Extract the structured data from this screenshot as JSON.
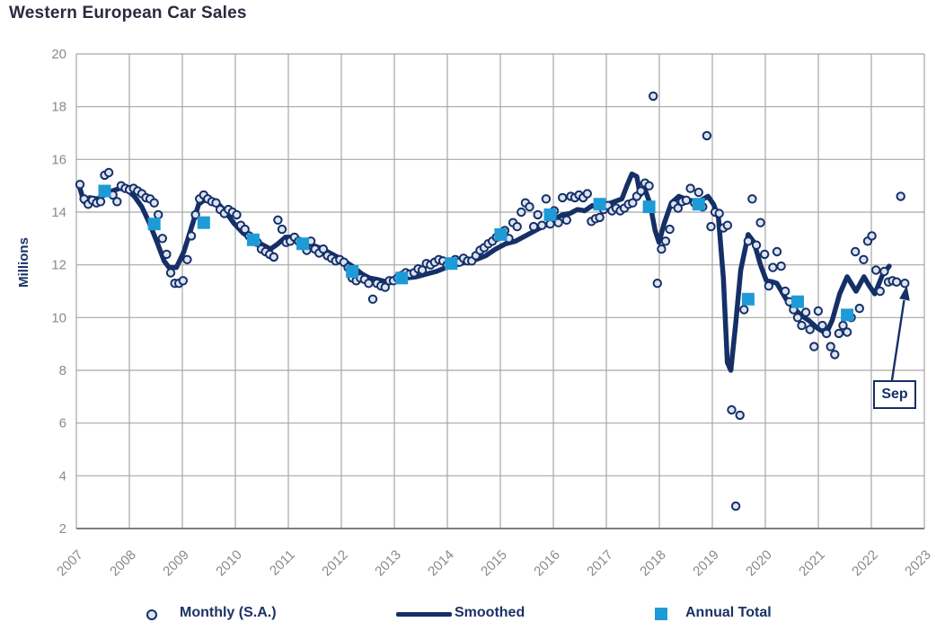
{
  "title": "Western European Car Sales",
  "y_axis_title": "Millions",
  "legend": {
    "monthly_label": "Monthly (S.A.)",
    "smoothed_label": "Smoothed",
    "annual_label": "Annual Total"
  },
  "annotation": {
    "label": "Sep"
  },
  "colors": {
    "navy": "#152F67",
    "dot_fill": "#DCE4F2",
    "annual_blue": "#1E9BD7",
    "grid": "#A6A6A6",
    "axis_line": "#7F7F7F",
    "axis_text": "#8A8A8A",
    "title_text": "#2A2A40",
    "label_text": "#1B3266"
  },
  "chart_data": {
    "type": "line",
    "title": "Western European Car Sales",
    "xlabel": "",
    "ylabel": "Millions",
    "ylim": [
      2,
      20
    ],
    "ytick_step": 2,
    "grid": true,
    "legend_position": "bottom",
    "x_years": [
      "2007",
      "2008",
      "2009",
      "2010",
      "2011",
      "2012",
      "2013",
      "2014",
      "2015",
      "2016",
      "2017",
      "2018",
      "2019",
      "2020",
      "2021",
      "2022",
      "2023"
    ],
    "monthly": {
      "name": "Monthly (S.A.)",
      "start": "2007-01",
      "end": "2023-09",
      "unit": "millions, seasonally adjusted annual rate",
      "values": [
        15.05,
        14.5,
        14.3,
        14.45,
        14.35,
        14.4,
        15.4,
        15.5,
        14.65,
        14.4,
        15.0,
        14.9,
        14.85,
        14.9,
        14.8,
        14.7,
        14.55,
        14.5,
        14.35,
        13.9,
        13.0,
        12.4,
        11.7,
        11.3,
        11.3,
        11.4,
        12.2,
        13.1,
        13.9,
        14.5,
        14.65,
        14.5,
        14.4,
        14.35,
        14.1,
        13.95,
        14.1,
        14.0,
        13.9,
        13.5,
        13.35,
        13.1,
        13.0,
        12.85,
        12.6,
        12.5,
        12.4,
        12.3,
        13.7,
        13.35,
        12.85,
        12.9,
        13.05,
        12.9,
        12.8,
        12.55,
        12.9,
        12.6,
        12.45,
        12.6,
        12.35,
        12.25,
        12.15,
        12.2,
        12.1,
        11.9,
        11.5,
        11.4,
        11.5,
        11.45,
        11.3,
        10.7,
        11.3,
        11.2,
        11.15,
        11.4,
        11.4,
        11.5,
        11.6,
        11.7,
        11.65,
        11.7,
        11.85,
        11.8,
        12.05,
        12.0,
        12.1,
        12.2,
        12.15,
        12.0,
        12.1,
        12.2,
        12.1,
        12.25,
        12.15,
        12.15,
        12.35,
        12.55,
        12.65,
        12.8,
        12.9,
        13.05,
        13.15,
        13.3,
        13.0,
        13.6,
        13.45,
        14.0,
        14.35,
        14.2,
        13.45,
        13.9,
        13.5,
        14.5,
        13.55,
        14.05,
        13.6,
        14.55,
        13.7,
        14.6,
        14.55,
        14.65,
        14.55,
        14.7,
        13.65,
        13.75,
        13.8,
        14.1,
        14.25,
        14.05,
        14.15,
        14.05,
        14.15,
        14.3,
        14.35,
        14.6,
        14.8,
        15.1,
        15.0,
        18.4,
        11.3,
        12.6,
        12.9,
        13.35,
        14.3,
        14.15,
        14.4,
        14.45,
        14.9,
        14.35,
        14.75,
        14.2,
        16.9,
        13.45,
        14.0,
        13.95,
        13.4,
        13.5,
        6.5,
        2.85,
        6.3,
        10.3,
        12.9,
        14.5,
        12.75,
        13.6,
        12.4,
        11.2,
        11.9,
        12.5,
        11.95,
        11.0,
        10.6,
        10.3,
        10.0,
        9.7,
        10.2,
        9.55,
        8.9,
        10.25,
        9.7,
        9.4,
        8.9,
        8.6,
        9.4,
        9.7,
        9.45,
        10.0,
        12.5,
        10.35,
        12.2,
        12.9,
        13.1,
        11.8,
        11.0,
        11.75,
        11.35,
        11.4,
        11.35,
        14.6,
        11.3
      ]
    },
    "smoothed": {
      "name": "Smoothed",
      "points": [
        [
          0,
          14.9
        ],
        [
          0.08,
          14.4
        ],
        [
          0.2,
          14.55
        ],
        [
          0.35,
          14.5
        ],
        [
          0.5,
          14.65
        ],
        [
          0.65,
          14.8
        ],
        [
          0.8,
          14.9
        ],
        [
          0.95,
          14.85
        ],
        [
          1.1,
          14.6
        ],
        [
          1.25,
          14.2
        ],
        [
          1.4,
          13.6
        ],
        [
          1.55,
          12.9
        ],
        [
          1.7,
          12.15
        ],
        [
          1.8,
          11.9
        ],
        [
          1.95,
          11.9
        ],
        [
          2.1,
          12.5
        ],
        [
          2.25,
          13.4
        ],
        [
          2.4,
          14.3
        ],
        [
          2.5,
          14.45
        ],
        [
          2.65,
          14.4
        ],
        [
          2.8,
          14.3
        ],
        [
          2.95,
          14.0
        ],
        [
          3.1,
          13.6
        ],
        [
          3.3,
          13.2
        ],
        [
          3.5,
          12.95
        ],
        [
          3.7,
          12.75
        ],
        [
          3.85,
          12.6
        ],
        [
          4.0,
          12.8
        ],
        [
          4.15,
          13.05
        ],
        [
          4.3,
          13.05
        ],
        [
          4.5,
          12.9
        ],
        [
          4.7,
          12.75
        ],
        [
          4.9,
          12.6
        ],
        [
          5.1,
          12.4
        ],
        [
          5.3,
          12.2
        ],
        [
          5.5,
          11.95
        ],
        [
          5.7,
          11.65
        ],
        [
          5.85,
          11.5
        ],
        [
          6.0,
          11.45
        ],
        [
          6.2,
          11.35
        ],
        [
          6.4,
          11.4
        ],
        [
          6.6,
          11.5
        ],
        [
          6.8,
          11.55
        ],
        [
          7.0,
          11.65
        ],
        [
          7.2,
          11.75
        ],
        [
          7.4,
          11.9
        ],
        [
          7.6,
          12.0
        ],
        [
          7.8,
          12.1
        ],
        [
          8.0,
          12.2
        ],
        [
          8.2,
          12.35
        ],
        [
          8.4,
          12.6
        ],
        [
          8.6,
          12.8
        ],
        [
          8.8,
          12.9
        ],
        [
          9.0,
          13.1
        ],
        [
          9.2,
          13.3
        ],
        [
          9.4,
          13.5
        ],
        [
          9.6,
          13.75
        ],
        [
          9.75,
          13.9
        ],
        [
          9.9,
          13.95
        ],
        [
          10.05,
          14.1
        ],
        [
          10.2,
          14.05
        ],
        [
          10.35,
          14.25
        ],
        [
          10.5,
          14.15
        ],
        [
          10.65,
          14.3
        ],
        [
          10.8,
          14.4
        ],
        [
          10.95,
          14.5
        ],
        [
          11.05,
          15.0
        ],
        [
          11.15,
          15.45
        ],
        [
          11.25,
          15.35
        ],
        [
          11.32,
          14.65
        ],
        [
          11.42,
          14.85
        ],
        [
          11.52,
          14.3
        ],
        [
          11.62,
          13.3
        ],
        [
          11.7,
          12.85
        ],
        [
          11.8,
          13.55
        ],
        [
          11.95,
          14.35
        ],
        [
          12.1,
          14.6
        ],
        [
          12.3,
          14.45
        ],
        [
          12.5,
          14.4
        ],
        [
          12.69,
          14.6
        ],
        [
          12.8,
          14.3
        ],
        [
          12.9,
          13.8
        ],
        [
          13.0,
          11.5
        ],
        [
          13.08,
          8.3
        ],
        [
          13.15,
          8.0
        ],
        [
          13.25,
          9.8
        ],
        [
          13.35,
          11.8
        ],
        [
          13.5,
          13.15
        ],
        [
          13.62,
          12.85
        ],
        [
          13.75,
          12.0
        ],
        [
          13.87,
          11.4
        ],
        [
          14.0,
          11.35
        ],
        [
          14.08,
          11.3
        ],
        [
          14.3,
          10.6
        ],
        [
          14.45,
          10.3
        ],
        [
          14.6,
          10.05
        ],
        [
          14.72,
          9.9
        ],
        [
          14.9,
          9.6
        ],
        [
          15.08,
          9.4
        ],
        [
          15.2,
          9.9
        ],
        [
          15.35,
          10.9
        ],
        [
          15.5,
          11.55
        ],
        [
          15.68,
          11.0
        ],
        [
          15.84,
          11.55
        ],
        [
          15.95,
          11.2
        ],
        [
          16.06,
          10.9
        ],
        [
          16.21,
          11.6
        ],
        [
          16.35,
          11.95
        ]
      ]
    },
    "annual_totals": {
      "name": "Annual Total",
      "values": [
        {
          "year": 2007,
          "value": 14.8
        },
        {
          "year": 2008,
          "value": 13.55
        },
        {
          "year": 2009,
          "value": 13.6
        },
        {
          "year": 2010,
          "value": 12.95
        },
        {
          "year": 2011,
          "value": 12.8
        },
        {
          "year": 2012,
          "value": 11.75
        },
        {
          "year": 2013,
          "value": 11.5
        },
        {
          "year": 2014,
          "value": 12.05
        },
        {
          "year": 2015,
          "value": 13.15
        },
        {
          "year": 2016,
          "value": 13.9
        },
        {
          "year": 2017,
          "value": 14.3
        },
        {
          "year": 2018,
          "value": 14.2
        },
        {
          "year": 2019,
          "value": 14.3
        },
        {
          "year": 2020,
          "value": 10.7
        },
        {
          "year": 2021,
          "value": 10.6
        },
        {
          "year": 2022,
          "value": 10.1
        }
      ]
    },
    "annotation": {
      "label": "Sep",
      "points_to": "2023-09",
      "value": 11.3
    }
  }
}
